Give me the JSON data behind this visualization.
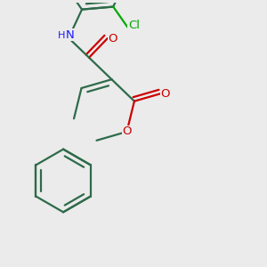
{
  "background_color": "#ebebeb",
  "bond_color": "#2d6b4a",
  "bond_width": 1.6,
  "atom_colors": {
    "O": "#cc0000",
    "N": "#1a1aff",
    "Cl": "#00aa00",
    "C": "#2d6b4a"
  },
  "font_size": 9.5
}
